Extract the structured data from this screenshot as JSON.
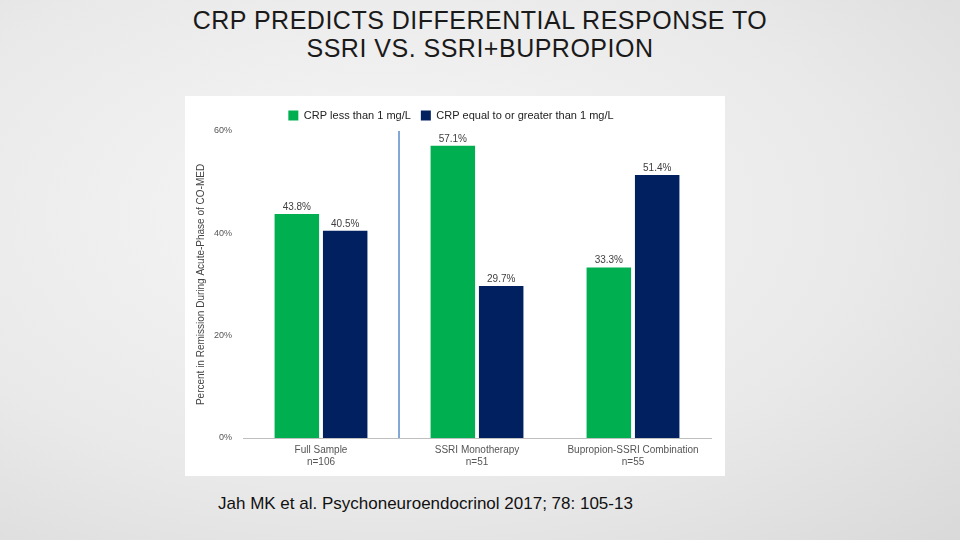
{
  "chart_data": {
    "type": "bar",
    "title": "CRP PREDICTS DIFFERENTIAL RESPONSE TO SSRI VS. SSRI+BUPROPION",
    "y_label": "Percent in Remission During Acute-Phase of CO-MED",
    "categories": [
      [
        "Full Sample",
        "n=106"
      ],
      [
        "SSRI Monotherapy",
        "n=51"
      ],
      [
        "Bupropion-SSRI Combination",
        "n=55"
      ]
    ],
    "series": [
      {
        "name": "CRP less than 1 mg/L",
        "color": "#00b050",
        "values": [
          43.8,
          57.1,
          33.3
        ],
        "value_labels": [
          "43.8%",
          "57.1%",
          "33.3%"
        ]
      },
      {
        "name": "CRP equal to or greater than 1 mg/L",
        "color": "#002060",
        "values": [
          40.5,
          29.7,
          51.4
        ],
        "value_labels": [
          "40.5%",
          "29.7%",
          "51.4%"
        ]
      }
    ],
    "ylim": [
      0,
      60
    ],
    "yticks": [
      {
        "value": 0,
        "label": "0%"
      },
      {
        "value": 20,
        "label": "20%"
      },
      {
        "value": 40,
        "label": "40%"
      },
      {
        "value": 60,
        "label": "60%"
      }
    ],
    "grid": false,
    "legend": "top",
    "data_labels": true,
    "annotations": [
      "Jah MK et al. Psychoneuroendocrinol 2017; 78: 105-13"
    ]
  }
}
